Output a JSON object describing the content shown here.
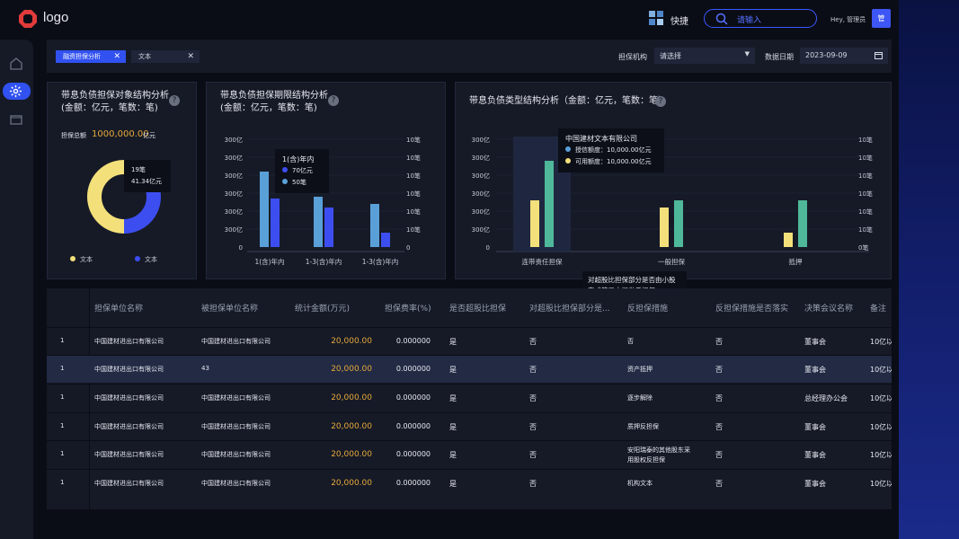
{
  "header": {
    "logo_text": "logo",
    "quick_label": "快捷",
    "search_placeholder": "请输入",
    "greeting": "Hey, 管理员",
    "avatar_text": "管"
  },
  "filters": {
    "tags": [
      "融资担保分析",
      "文本"
    ],
    "org_label": "担保机构",
    "org_value": "请选择",
    "date_label": "数据日期",
    "date_value": "2023-09-09"
  },
  "panel1": {
    "title_line1": "带息负债担保对象结构分析",
    "title_line2": "(金额：亿元，笔数：笔)",
    "total_label": "担保总额",
    "total_value": "1000,000.00",
    "total_unit": "亿元",
    "tooltip_line1": "19笔",
    "tooltip_line2": "41.34亿元",
    "legend": [
      {
        "label": "文本",
        "color": "#f3e07a"
      },
      {
        "label": "文本",
        "color": "#3d4ef0"
      }
    ]
  },
  "panel2": {
    "title_line1": "带息负债担保期限结构分析",
    "title_line2": "(金额：亿元，笔数：笔)",
    "tooltip_title": "1(含)年内",
    "tooltip_amount": "70亿元",
    "tooltip_count": "50笔"
  },
  "panel3": {
    "title": "带息负债类型结构分析（金额：亿元，笔数：笔）",
    "tooltip_title": "中国建材文本有限公司",
    "tooltip_credit": "授信额度：10,000.00亿元",
    "tooltip_available": "可用额度：10,000.00亿元",
    "hint": "对超股比担保部分是否由小股东或第三方提供反担保"
  },
  "chart_data": [
    {
      "type": "pie",
      "title": "带息负债担保对象结构分析",
      "slices": [
        {
          "label": "文本",
          "value": 50,
          "color": "#f3e07a"
        },
        {
          "label": "文本",
          "value": 50,
          "color": "#3d4ef0"
        }
      ]
    },
    {
      "type": "bar",
      "title": "带息负债担保期限结构分析",
      "categories": [
        "1(含)年内",
        "1-3(含)年内",
        "1-3(含)年内"
      ],
      "left_ticks": [
        "0",
        "300亿",
        "300亿",
        "300亿",
        "300亿",
        "300亿",
        "300亿"
      ],
      "right_ticks": [
        "0",
        "10笔",
        "10笔",
        "10笔",
        "10笔",
        "10笔",
        "10笔"
      ],
      "series": [
        {
          "values": [
            4.2,
            2.8,
            2.4
          ],
          "color": "#5aa0d8"
        },
        {
          "values": [
            2.7,
            2.2,
            0.8
          ],
          "color": "#3d4ef0"
        }
      ],
      "ylim": [
        0,
        6
      ]
    },
    {
      "type": "bar",
      "title": "带息负债类型结构分析",
      "categories": [
        "连带责任担保",
        "一般担保",
        "抵押"
      ],
      "left_ticks": [
        "0",
        "300亿",
        "300亿",
        "300亿",
        "300亿",
        "300亿",
        "300亿"
      ],
      "right_ticks": [
        "0笔",
        "10笔",
        "10笔",
        "10笔",
        "10笔",
        "10笔",
        "10笔"
      ],
      "series": [
        {
          "name": "授信额度",
          "values": [
            2.6,
            2.2,
            0.8
          ],
          "color": "#f3e07a"
        },
        {
          "name": "可用额度",
          "values": [
            4.8,
            2.6,
            2.6
          ],
          "color": "#4fb89a"
        }
      ],
      "ylim": [
        0,
        6
      ]
    }
  ],
  "table": {
    "columns": [
      "担保单位名称",
      "被担保单位名称",
      "统计金额(万元)",
      "担保费率(%)",
      "是否超股比担保",
      "对超股比担保部分是...",
      "反担保措施",
      "反担保措施是否落实",
      "决策会议名称",
      "备注"
    ],
    "rows": [
      [
        "1",
        "中国建材进出口有限公司",
        "中国建材进出口有限公司",
        "20,000.00",
        "0.000000",
        "是",
        "否",
        "否",
        "否",
        "董事会",
        "10亿以"
      ],
      [
        "1",
        "中国建材进出口有限公司",
        "43",
        "20,000.00",
        "0.000000",
        "是",
        "否",
        "资产抵押",
        "否",
        "董事会",
        "10亿以"
      ],
      [
        "1",
        "中国建材进出口有限公司",
        "中国建材进出口有限公司",
        "20,000.00",
        "0.000000",
        "是",
        "否",
        "逐步解除",
        "否",
        "总经理办公会",
        "10亿以"
      ],
      [
        "1",
        "中国建材进出口有限公司",
        "中国建材进出口有限公司",
        "20,000.00",
        "0.000000",
        "是",
        "否",
        "质押反担保",
        "否",
        "董事会",
        "10亿以"
      ],
      [
        "1",
        "中国建材进出口有限公司",
        "中国建材进出口有限公司",
        "20,000.00",
        "0.000000",
        "是",
        "否",
        "安阳瑞泰的其他股东采用股权反担保",
        "否",
        "董事会",
        "10亿以"
      ],
      [
        "1",
        "中国建材进出口有限公司",
        "中国建材进出口有限公司",
        "20,000.00",
        "0.000000",
        "是",
        "否",
        "机构文本",
        "否",
        "董事会",
        "10亿以"
      ]
    ]
  }
}
